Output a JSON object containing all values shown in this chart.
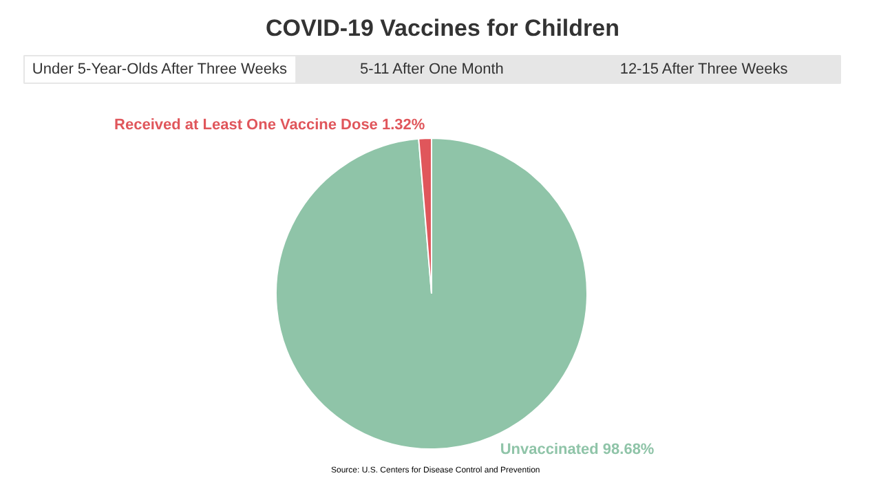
{
  "chart_data": {
    "type": "pie",
    "title": "COVID-19 Vaccines for Children",
    "categories": [
      "Unvaccinated",
      "Received at Least One Vaccine Dose"
    ],
    "values": [
      98.68,
      1.32
    ],
    "colors": [
      "#8fc4a8",
      "#e0565b"
    ],
    "value_labels": [
      "98.68%",
      "1.32%"
    ],
    "annotations": [
      "Under 5-Year-Olds After Three Weeks",
      "5-11 After One Month",
      "12-15 After Three Weeks",
      "Source: U.S. Centers for Disease Control and Prevention"
    ]
  }
}
